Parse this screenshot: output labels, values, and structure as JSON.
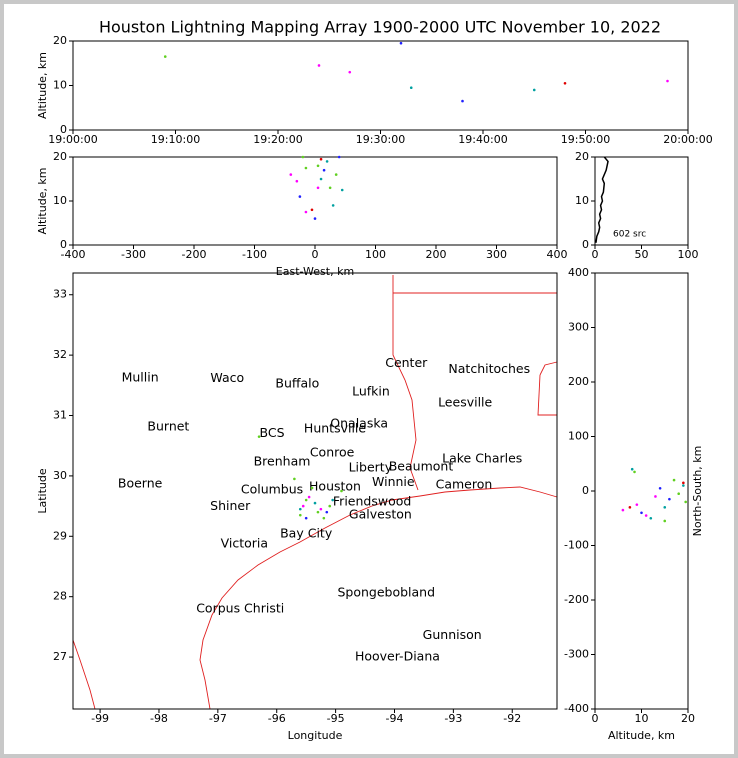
{
  "title": "Houston Lightning Mapping Array 1900-2000 UTC November 10, 2022",
  "chart_data": [
    {
      "type": "scatter",
      "ylabel": "Altitude, km",
      "xlim": [
        "19:00:00",
        "20:00:00"
      ],
      "xticks": [
        "19:00:00",
        "19:10:00",
        "19:20:00",
        "19:30:00",
        "19:40:00",
        "19:50:00",
        "20:00:00"
      ],
      "ylim": [
        0,
        20
      ],
      "yticks": [
        0,
        10,
        20
      ],
      "series": [
        {
          "color": "#ff00ff",
          "x": [
            "19:24:00",
            "19:58:00",
            "19:27:00"
          ],
          "values": [
            14.5,
            11,
            13
          ]
        },
        {
          "color": "#00a0a0",
          "x": [
            "19:33:00",
            "19:45:00"
          ],
          "values": [
            9.5,
            9
          ]
        },
        {
          "color": "#2020ff",
          "x": [
            "19:38:00",
            "19:32:00"
          ],
          "values": [
            6.5,
            19.5
          ]
        },
        {
          "color": "#60d020",
          "x": [
            "19:09:00"
          ],
          "values": [
            16.5
          ]
        },
        {
          "color": "#e00000",
          "x": [
            "19:48:00"
          ],
          "values": [
            10.5
          ]
        }
      ]
    },
    {
      "type": "scatter",
      "xlabel": "East-West, km",
      "ylabel": "Altitude, km",
      "xlim": [
        -400,
        400
      ],
      "xticks": [
        -400,
        -300,
        -200,
        -100,
        0,
        100,
        200,
        300,
        400
      ],
      "ylim": [
        0,
        20
      ],
      "yticks": [
        0,
        10,
        20
      ],
      "series": [
        {
          "color": "#ff00ff",
          "x": [
            -40,
            -15,
            5,
            -30
          ],
          "values": [
            16,
            7.5,
            13,
            14.5
          ]
        },
        {
          "color": "#00a0a0",
          "x": [
            10,
            45,
            20,
            30
          ],
          "values": [
            15,
            12.5,
            19,
            9
          ]
        },
        {
          "color": "#2020ff",
          "x": [
            -25,
            0,
            40,
            15
          ],
          "values": [
            11,
            6,
            20,
            17
          ]
        },
        {
          "color": "#60d020",
          "x": [
            -15,
            5,
            25,
            -20,
            35
          ],
          "values": [
            17.5,
            18,
            13,
            20,
            16
          ]
        },
        {
          "color": "#e00000",
          "x": [
            -5,
            10
          ],
          "values": [
            8,
            19.5
          ]
        }
      ]
    },
    {
      "type": "line",
      "annotation": "602 src",
      "xlim": [
        0,
        100
      ],
      "xticks": [
        0,
        50,
        100
      ],
      "ylim": [
        0,
        20
      ],
      "yticks": [
        0,
        10,
        20
      ],
      "series": [
        {
          "color": "#000000",
          "x": [
            1,
            2,
            4,
            5,
            4,
            6,
            5,
            7,
            6,
            8,
            7,
            9,
            10,
            8,
            12,
            14,
            10
          ],
          "values": [
            0.5,
            2,
            3,
            4,
            5,
            6,
            7,
            8,
            9,
            10,
            11,
            12,
            14,
            15,
            17,
            19,
            20
          ]
        }
      ]
    },
    {
      "type": "map",
      "xlabel": "Longitude",
      "ylabel": "Latitude",
      "xlim": [
        -99.46,
        -91.24
      ],
      "xticks": [
        -99,
        -98,
        -97,
        -96,
        -95,
        -94,
        -93,
        -92
      ],
      "ylim": [
        26.14,
        33.36
      ],
      "yticks": [
        27,
        28,
        29,
        30,
        31,
        32,
        33
      ],
      "series": [
        {
          "color": "#60d020",
          "x": [
            -95.7,
            -95.5,
            -95.3,
            -95.1,
            -95.6,
            -94.9,
            -95.4,
            -95.2,
            -96.3
          ],
          "values": [
            29.95,
            29.6,
            29.4,
            29.5,
            29.35,
            29.75,
            29.8,
            29.3,
            30.65
          ]
        },
        {
          "color": "#ff00ff",
          "x": [
            -95.55,
            -95.25,
            -95.45
          ],
          "values": [
            29.5,
            29.45,
            29.65
          ]
        },
        {
          "color": "#00a0a0",
          "x": [
            -95.35,
            -95.05,
            -95.6
          ],
          "values": [
            29.55,
            29.6,
            29.45
          ]
        },
        {
          "color": "#2020ff",
          "x": [
            -95.15,
            -95.5
          ],
          "values": [
            29.4,
            29.3
          ]
        }
      ],
      "annotations": [
        {
          "text": "Mullin",
          "lon": -98.32,
          "lat": 31.62,
          "color": "#ff8c40"
        },
        {
          "text": "Waco",
          "lon": -96.84,
          "lat": 31.61,
          "color": "#000000"
        },
        {
          "text": "Buffalo",
          "lon": -95.65,
          "lat": 31.52,
          "color": "#000000"
        },
        {
          "text": "Center",
          "lon": -93.8,
          "lat": 31.86,
          "color": "#000000"
        },
        {
          "text": "Natchitoches",
          "lon": -92.39,
          "lat": 31.76,
          "color": "#000000"
        },
        {
          "text": "Lufkin",
          "lon": -94.4,
          "lat": 31.39,
          "color": "#000000"
        },
        {
          "text": "Leesville",
          "lon": -92.8,
          "lat": 31.21,
          "color": "#000000"
        },
        {
          "text": "Burnet",
          "lon": -97.84,
          "lat": 30.81,
          "color": "#000000"
        },
        {
          "text": "BCS",
          "lon": -96.08,
          "lat": 30.7,
          "color": "#8b0000"
        },
        {
          "text": "Huntsville",
          "lon": -95.01,
          "lat": 30.78,
          "color": "#000000"
        },
        {
          "text": "Onalaska",
          "lon": -94.6,
          "lat": 30.86,
          "color": "#000000"
        },
        {
          "text": "Conroe",
          "lon": -95.06,
          "lat": 30.38,
          "color": "#000000"
        },
        {
          "text": "Brenham",
          "lon": -95.91,
          "lat": 30.23,
          "color": "#000000"
        },
        {
          "text": "Lake Charles",
          "lon": -92.51,
          "lat": 30.28,
          "color": "#000000"
        },
        {
          "text": "Liberty",
          "lon": -94.41,
          "lat": 30.13,
          "color": "#000000"
        },
        {
          "text": "Beaumont",
          "lon": -93.55,
          "lat": 30.15,
          "color": "#000000"
        },
        {
          "text": "Boerne",
          "lon": -98.32,
          "lat": 29.87,
          "color": "#000000"
        },
        {
          "text": "Winnie",
          "lon": -94.02,
          "lat": 29.89,
          "color": "#000000"
        },
        {
          "text": "Cameron",
          "lon": -92.82,
          "lat": 29.85,
          "color": "#000000"
        },
        {
          "text": "Columbus",
          "lon": -96.08,
          "lat": 29.77,
          "color": "#000000"
        },
        {
          "text": "Houston",
          "lon": -95.01,
          "lat": 29.82,
          "color": "#ff8c00"
        },
        {
          "text": "Friendswood",
          "lon": -94.38,
          "lat": 29.57,
          "color": "#000000"
        },
        {
          "text": "Shiner",
          "lon": -96.79,
          "lat": 29.49,
          "color": "#000000"
        },
        {
          "text": "Galveston",
          "lon": -94.24,
          "lat": 29.35,
          "color": "#000000"
        },
        {
          "text": "Victoria",
          "lon": -96.55,
          "lat": 28.87,
          "color": "#000000"
        },
        {
          "text": "Bay City",
          "lon": -95.5,
          "lat": 29.04,
          "color": "#000000"
        },
        {
          "text": "Spongebobland",
          "lon": -94.14,
          "lat": 28.06,
          "color": "#0000ff"
        },
        {
          "text": "Corpus Christi",
          "lon": -96.62,
          "lat": 27.8,
          "color": "#000000"
        },
        {
          "text": "Gunnison",
          "lon": -93.02,
          "lat": 27.36,
          "color": "#0000ff"
        },
        {
          "text": "Hoover-Diana",
          "lon": -93.95,
          "lat": 27.0,
          "color": "#0000ff"
        }
      ]
    },
    {
      "type": "scatter",
      "xlabel": "Altitude, km",
      "ylabel": "North-South, km",
      "xlim": [
        0,
        20
      ],
      "xticks": [
        0,
        10,
        20
      ],
      "ylim": [
        -400,
        400
      ],
      "yticks": [
        -400,
        -300,
        -200,
        -100,
        0,
        100,
        200,
        300,
        400
      ],
      "series": [
        {
          "color": "#ff00ff",
          "x": [
            9,
            6,
            13,
            11
          ],
          "values": [
            -25,
            -35,
            -10,
            -45
          ]
        },
        {
          "color": "#00a0a0",
          "x": [
            8,
            15,
            19,
            12
          ],
          "values": [
            40,
            -30,
            10,
            -50
          ]
        },
        {
          "color": "#2020ff",
          "x": [
            10,
            16,
            14
          ],
          "values": [
            -40,
            -15,
            5
          ]
        },
        {
          "color": "#60d020",
          "x": [
            17,
            18,
            8.5,
            19.5,
            15
          ],
          "values": [
            20,
            -5,
            35,
            -20,
            -55
          ]
        },
        {
          "color": "#e00000",
          "x": [
            7.5,
            19
          ],
          "values": [
            -30,
            15
          ]
        }
      ]
    }
  ]
}
